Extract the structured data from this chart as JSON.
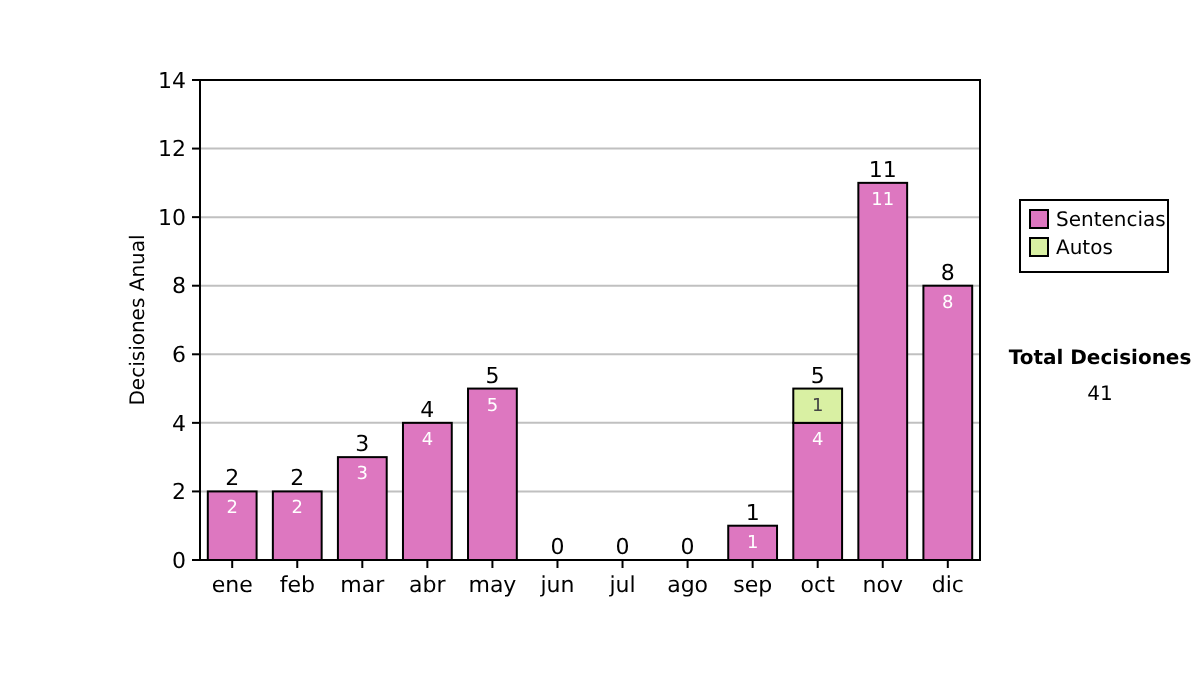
{
  "chart_data": {
    "type": "bar",
    "stacked": true,
    "ylabel": "Decisiones Anual",
    "categories": [
      "ene",
      "feb",
      "mar",
      "abr",
      "may",
      "jun",
      "jul",
      "ago",
      "sep",
      "oct",
      "nov",
      "dic"
    ],
    "series": [
      {
        "name": "Sentencias",
        "color": "#dd77c0",
        "values": [
          2,
          2,
          3,
          4,
          5,
          0,
          0,
          0,
          1,
          4,
          11,
          8
        ],
        "value_labels": [
          "2",
          "2",
          "3",
          "4",
          "5",
          null,
          null,
          null,
          "1",
          "4",
          "11",
          "8"
        ]
      },
      {
        "name": "Autos",
        "color": "#d9f0a3",
        "values": [
          0,
          0,
          0,
          0,
          0,
          0,
          0,
          0,
          0,
          1,
          0,
          0
        ],
        "value_labels": [
          null,
          null,
          null,
          null,
          null,
          null,
          null,
          null,
          null,
          "1",
          null,
          null
        ]
      }
    ],
    "totals": [
      "2",
      "2",
      "3",
      "4",
      "5",
      "0",
      "0",
      "0",
      "1",
      "5",
      "11",
      "8"
    ],
    "ylim": [
      0,
      14
    ],
    "yticks": [
      0,
      2,
      4,
      6,
      8,
      10,
      12,
      14
    ],
    "grid": "y",
    "legend": "right",
    "annotations": [
      "Total Decisiones",
      "41"
    ]
  }
}
